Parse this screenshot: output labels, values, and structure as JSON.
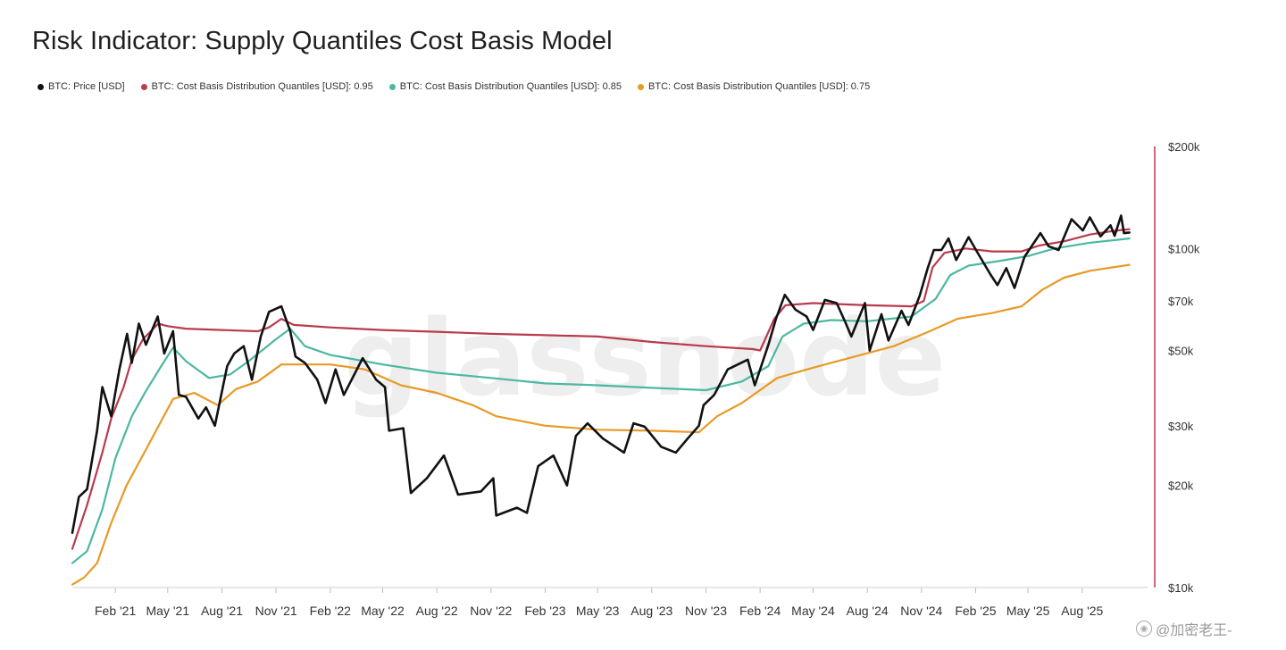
{
  "title": "Risk Indicator: Supply Quantiles Cost Basis Model",
  "watermark": {
    "brand": "glassnode",
    "social": "@加密老王-",
    "social_icon": "camera-icon"
  },
  "colors": {
    "price": "#111111",
    "q95": "#b83b4c",
    "q85": "#4bb8a0",
    "q75": "#e89a26",
    "axis_line": "#b83b4c",
    "tick_text": "#333333"
  },
  "chart_data": {
    "type": "line",
    "title": "Risk Indicator: Supply Quantiles Cost Basis Model",
    "xlabel": "",
    "ylabel": "",
    "y_scale": "log",
    "ylim": [
      10000,
      200000
    ],
    "xlim": [
      "2020-11-20",
      "2025-11-20"
    ],
    "y_ticks": [
      {
        "value": 10000,
        "label": "$10k"
      },
      {
        "value": 20000,
        "label": "$20k"
      },
      {
        "value": 30000,
        "label": "$30k"
      },
      {
        "value": 50000,
        "label": "$50k"
      },
      {
        "value": 70000,
        "label": "$70k"
      },
      {
        "value": 100000,
        "label": "$100k"
      },
      {
        "value": 200000,
        "label": "$200k"
      }
    ],
    "x_ticks": [
      {
        "date": "2021-02-01",
        "label": "Feb '21"
      },
      {
        "date": "2021-05-01",
        "label": "May '21"
      },
      {
        "date": "2021-08-01",
        "label": "Aug '21"
      },
      {
        "date": "2021-11-01",
        "label": "Nov '21"
      },
      {
        "date": "2022-02-01",
        "label": "Feb '22"
      },
      {
        "date": "2022-05-01",
        "label": "May '22"
      },
      {
        "date": "2022-08-01",
        "label": "Aug '22"
      },
      {
        "date": "2022-11-01",
        "label": "Nov '22"
      },
      {
        "date": "2023-02-01",
        "label": "Feb '23"
      },
      {
        "date": "2023-05-01",
        "label": "May '23"
      },
      {
        "date": "2023-08-01",
        "label": "Aug '23"
      },
      {
        "date": "2023-11-01",
        "label": "Nov '23"
      },
      {
        "date": "2024-02-01",
        "label": "Feb '24"
      },
      {
        "date": "2024-05-01",
        "label": "May '24"
      },
      {
        "date": "2024-08-01",
        "label": "Aug '24"
      },
      {
        "date": "2024-11-01",
        "label": "Nov '24"
      },
      {
        "date": "2025-02-01",
        "label": "Feb '25"
      },
      {
        "date": "2025-05-01",
        "label": "May '25"
      },
      {
        "date": "2025-08-01",
        "label": "Aug '25"
      }
    ],
    "legend_position": "top-left",
    "grid": false,
    "series": [
      {
        "name": "BTC: Price [USD]",
        "color": "#111111",
        "points": [
          [
            "2020-11-20",
            14500
          ],
          [
            "2020-12-01",
            18500
          ],
          [
            "2020-12-15",
            19500
          ],
          [
            "2021-01-01",
            29000
          ],
          [
            "2021-01-10",
            39000
          ],
          [
            "2021-01-25",
            32000
          ],
          [
            "2021-02-08",
            44000
          ],
          [
            "2021-02-21",
            56000
          ],
          [
            "2021-03-01",
            46000
          ],
          [
            "2021-03-13",
            60000
          ],
          [
            "2021-03-25",
            52000
          ],
          [
            "2021-04-14",
            63000
          ],
          [
            "2021-04-25",
            49000
          ],
          [
            "2021-05-10",
            57000
          ],
          [
            "2021-05-20",
            37000
          ],
          [
            "2021-06-01",
            36500
          ],
          [
            "2021-06-22",
            31500
          ],
          [
            "2021-07-05",
            34000
          ],
          [
            "2021-07-20",
            30000
          ],
          [
            "2021-08-10",
            45000
          ],
          [
            "2021-08-22",
            49000
          ],
          [
            "2021-09-07",
            51500
          ],
          [
            "2021-09-21",
            41000
          ],
          [
            "2021-10-06",
            55000
          ],
          [
            "2021-10-20",
            65000
          ],
          [
            "2021-11-10",
            67500
          ],
          [
            "2021-11-25",
            57000
          ],
          [
            "2021-12-04",
            48000
          ],
          [
            "2021-12-20",
            46000
          ],
          [
            "2022-01-10",
            41000
          ],
          [
            "2022-01-24",
            35000
          ],
          [
            "2022-02-10",
            44000
          ],
          [
            "2022-02-24",
            37000
          ],
          [
            "2022-03-28",
            47500
          ],
          [
            "2022-04-20",
            41000
          ],
          [
            "2022-05-05",
            39000
          ],
          [
            "2022-05-12",
            29000
          ],
          [
            "2022-06-05",
            29500
          ],
          [
            "2022-06-18",
            19000
          ],
          [
            "2022-07-15",
            21000
          ],
          [
            "2022-08-13",
            24500
          ],
          [
            "2022-09-06",
            18800
          ],
          [
            "2022-10-15",
            19200
          ],
          [
            "2022-11-05",
            21000
          ],
          [
            "2022-11-10",
            16300
          ],
          [
            "2022-12-15",
            17200
          ],
          [
            "2023-01-01",
            16600
          ],
          [
            "2023-01-20",
            22800
          ],
          [
            "2023-02-15",
            24500
          ],
          [
            "2023-03-10",
            20000
          ],
          [
            "2023-03-25",
            28000
          ],
          [
            "2023-04-14",
            30500
          ],
          [
            "2023-05-10",
            27500
          ],
          [
            "2023-06-15",
            25000
          ],
          [
            "2023-07-01",
            30500
          ],
          [
            "2023-07-20",
            29800
          ],
          [
            "2023-08-17",
            26000
          ],
          [
            "2023-09-11",
            25000
          ],
          [
            "2023-10-01",
            27500
          ],
          [
            "2023-10-20",
            30000
          ],
          [
            "2023-10-28",
            34500
          ],
          [
            "2023-11-15",
            37000
          ],
          [
            "2023-12-08",
            44000
          ],
          [
            "2024-01-11",
            47000
          ],
          [
            "2024-01-23",
            39500
          ],
          [
            "2024-02-15",
            52000
          ],
          [
            "2024-02-28",
            62000
          ],
          [
            "2024-03-14",
            73000
          ],
          [
            "2024-04-01",
            66000
          ],
          [
            "2024-04-20",
            63000
          ],
          [
            "2024-05-01",
            57500
          ],
          [
            "2024-05-21",
            70500
          ],
          [
            "2024-06-10",
            69000
          ],
          [
            "2024-06-25",
            60500
          ],
          [
            "2024-07-05",
            55000
          ],
          [
            "2024-07-28",
            69000
          ],
          [
            "2024-08-05",
            50000
          ],
          [
            "2024-08-25",
            64000
          ],
          [
            "2024-09-06",
            53500
          ],
          [
            "2024-09-28",
            65500
          ],
          [
            "2024-10-10",
            59500
          ],
          [
            "2024-10-29",
            72500
          ],
          [
            "2024-11-12",
            88000
          ],
          [
            "2024-11-22",
            99000
          ],
          [
            "2024-12-05",
            99000
          ],
          [
            "2024-12-17",
            107000
          ],
          [
            "2024-12-30",
            92500
          ],
          [
            "2025-01-20",
            108000
          ],
          [
            "2025-02-03",
            98000
          ],
          [
            "2025-02-26",
            84000
          ],
          [
            "2025-03-10",
            78000
          ],
          [
            "2025-03-25",
            87500
          ],
          [
            "2025-04-08",
            76500
          ],
          [
            "2025-04-25",
            94500
          ],
          [
            "2025-05-22",
            111000
          ],
          [
            "2025-06-05",
            101500
          ],
          [
            "2025-06-22",
            99000
          ],
          [
            "2025-07-14",
            122000
          ],
          [
            "2025-08-02",
            113000
          ],
          [
            "2025-08-14",
            123500
          ],
          [
            "2025-09-01",
            108500
          ],
          [
            "2025-09-18",
            117000
          ],
          [
            "2025-09-25",
            109000
          ],
          [
            "2025-10-06",
            125000
          ],
          [
            "2025-10-11",
            111000
          ],
          [
            "2025-10-20",
            111500
          ]
        ]
      },
      {
        "name": "BTC: Cost Basis Distribution Quantiles [USD]: 0.95",
        "color": "#b83b4c",
        "points": [
          [
            "2020-11-20",
            13000
          ],
          [
            "2020-12-15",
            17500
          ],
          [
            "2021-01-10",
            25000
          ],
          [
            "2021-01-25",
            31500
          ],
          [
            "2021-02-15",
            39000
          ],
          [
            "2021-03-01",
            47000
          ],
          [
            "2021-03-20",
            54000
          ],
          [
            "2021-04-15",
            60000
          ],
          [
            "2021-05-01",
            59000
          ],
          [
            "2021-06-01",
            58000
          ],
          [
            "2021-08-01",
            57500
          ],
          [
            "2021-10-01",
            57000
          ],
          [
            "2021-10-20",
            58500
          ],
          [
            "2021-11-10",
            62000
          ],
          [
            "2021-12-01",
            59500
          ],
          [
            "2022-02-01",
            58500
          ],
          [
            "2022-05-01",
            57500
          ],
          [
            "2022-08-01",
            56800
          ],
          [
            "2022-11-01",
            56000
          ],
          [
            "2023-02-01",
            55500
          ],
          [
            "2023-05-01",
            55000
          ],
          [
            "2023-08-01",
            53000
          ],
          [
            "2023-11-01",
            51500
          ],
          [
            "2024-01-20",
            50500
          ],
          [
            "2024-02-01",
            50000
          ],
          [
            "2024-02-25",
            62000
          ],
          [
            "2024-03-15",
            68000
          ],
          [
            "2024-05-01",
            69000
          ],
          [
            "2024-08-01",
            68000
          ],
          [
            "2024-10-15",
            67500
          ],
          [
            "2024-11-05",
            70000
          ],
          [
            "2024-11-20",
            88000
          ],
          [
            "2024-12-10",
            97000
          ],
          [
            "2025-01-15",
            100000
          ],
          [
            "2025-03-01",
            98000
          ],
          [
            "2025-04-20",
            98000
          ],
          [
            "2025-05-20",
            102000
          ],
          [
            "2025-07-01",
            105000
          ],
          [
            "2025-08-15",
            110000
          ],
          [
            "2025-09-20",
            112500
          ],
          [
            "2025-10-20",
            114000
          ]
        ]
      },
      {
        "name": "BTC: Cost Basis Distribution Quantiles [USD]: 0.85",
        "color": "#4bb8a0",
        "points": [
          [
            "2020-11-20",
            11800
          ],
          [
            "2020-12-15",
            12800
          ],
          [
            "2021-01-10",
            17000
          ],
          [
            "2021-02-01",
            24000
          ],
          [
            "2021-03-01",
            32000
          ],
          [
            "2021-03-25",
            38000
          ],
          [
            "2021-04-20",
            45000
          ],
          [
            "2021-05-10",
            51000
          ],
          [
            "2021-06-01",
            46500
          ],
          [
            "2021-07-10",
            41500
          ],
          [
            "2021-08-15",
            42500
          ],
          [
            "2021-09-15",
            46500
          ],
          [
            "2021-11-01",
            54000
          ],
          [
            "2021-11-25",
            58000
          ],
          [
            "2021-12-20",
            51500
          ],
          [
            "2022-02-01",
            48500
          ],
          [
            "2022-05-01",
            45500
          ],
          [
            "2022-08-01",
            43000
          ],
          [
            "2022-11-01",
            41500
          ],
          [
            "2023-02-01",
            40000
          ],
          [
            "2023-05-01",
            39500
          ],
          [
            "2023-08-01",
            38800
          ],
          [
            "2023-11-01",
            38200
          ],
          [
            "2024-01-01",
            40500
          ],
          [
            "2024-02-15",
            45000
          ],
          [
            "2024-03-10",
            55000
          ],
          [
            "2024-04-15",
            60000
          ],
          [
            "2024-06-01",
            61500
          ],
          [
            "2024-08-01",
            61000
          ],
          [
            "2024-10-15",
            63000
          ],
          [
            "2024-11-25",
            71000
          ],
          [
            "2024-12-20",
            83500
          ],
          [
            "2025-01-20",
            89000
          ],
          [
            "2025-03-15",
            92000
          ],
          [
            "2025-05-01",
            95000
          ],
          [
            "2025-06-15",
            100000
          ],
          [
            "2025-08-15",
            104000
          ],
          [
            "2025-10-20",
            107000
          ]
        ]
      },
      {
        "name": "BTC: Cost Basis Distribution Quantiles [USD]: 0.75",
        "color": "#e89a26",
        "points": [
          [
            "2020-11-20",
            10200
          ],
          [
            "2020-12-10",
            10700
          ],
          [
            "2021-01-01",
            11800
          ],
          [
            "2021-01-25",
            15500
          ],
          [
            "2021-02-20",
            20000
          ],
          [
            "2021-03-25",
            25500
          ],
          [
            "2021-04-20",
            31000
          ],
          [
            "2021-05-10",
            36000
          ],
          [
            "2021-06-15",
            37500
          ],
          [
            "2021-07-25",
            34500
          ],
          [
            "2021-08-25",
            38500
          ],
          [
            "2021-10-01",
            40500
          ],
          [
            "2021-11-10",
            45500
          ],
          [
            "2021-12-20",
            45500
          ],
          [
            "2022-02-01",
            45500
          ],
          [
            "2022-04-01",
            44000
          ],
          [
            "2022-06-01",
            39500
          ],
          [
            "2022-08-01",
            37500
          ],
          [
            "2022-10-01",
            34500
          ],
          [
            "2022-11-10",
            32000
          ],
          [
            "2023-02-01",
            30000
          ],
          [
            "2023-05-01",
            29200
          ],
          [
            "2023-08-01",
            29000
          ],
          [
            "2023-10-20",
            28700
          ],
          [
            "2023-11-20",
            32000
          ],
          [
            "2024-01-01",
            35000
          ],
          [
            "2024-03-01",
            41500
          ],
          [
            "2024-05-01",
            44500
          ],
          [
            "2024-07-01",
            47500
          ],
          [
            "2024-09-15",
            51500
          ],
          [
            "2024-11-15",
            57000
          ],
          [
            "2025-01-01",
            62000
          ],
          [
            "2025-03-01",
            64500
          ],
          [
            "2025-04-20",
            67500
          ],
          [
            "2025-05-25",
            75500
          ],
          [
            "2025-07-01",
            82000
          ],
          [
            "2025-08-15",
            86000
          ],
          [
            "2025-10-20",
            89500
          ]
        ]
      }
    ]
  }
}
